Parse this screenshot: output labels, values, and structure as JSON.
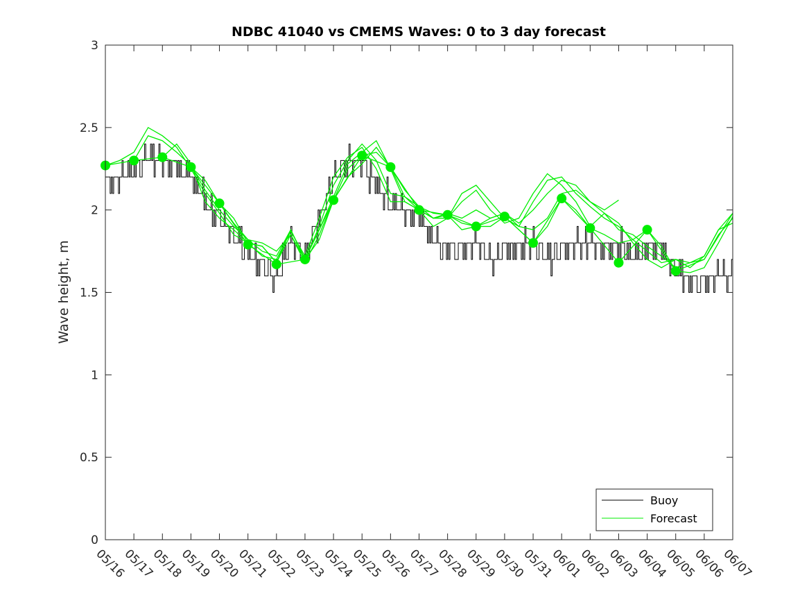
{
  "chart_data": {
    "type": "line",
    "title": "NDBC 41040 vs CMEMS Waves: 0 to 3 day forecast",
    "ylabel": "Wave height, m",
    "xlabel": "",
    "ylim": [
      0,
      3
    ],
    "yticks": [
      "0",
      "0.5",
      "1",
      "1.5",
      "2",
      "2.5",
      "3"
    ],
    "xlim": [
      "05/16",
      "06/07"
    ],
    "categories": [
      "05/16",
      "05/17",
      "05/18",
      "05/19",
      "05/20",
      "05/21",
      "05/22",
      "05/23",
      "05/24",
      "05/25",
      "05/26",
      "05/27",
      "05/28",
      "05/29",
      "05/30",
      "05/31",
      "06/01",
      "06/02",
      "06/03",
      "06/04",
      "06/05",
      "06/06",
      "06/07"
    ],
    "grid": false,
    "legend_position": "bottom-right",
    "colors": {
      "buoy": "#000000",
      "forecast": "#00ee00"
    },
    "series": [
      {
        "name": "Buoy",
        "x": [
          0,
          0.5,
          1,
          1.5,
          2,
          2.5,
          3,
          3.5,
          4,
          4.5,
          5,
          5.5,
          6,
          6.5,
          7,
          7.5,
          8,
          8.5,
          9,
          9.5,
          10,
          10.5,
          11,
          11.5,
          12,
          12.5,
          13,
          13.5,
          14,
          14.5,
          15,
          15.5,
          16,
          16.5,
          17,
          17.5,
          18,
          18.5,
          19,
          19.5,
          20,
          20.5,
          21,
          21.5,
          22
        ],
        "values": [
          2.15,
          2.2,
          2.25,
          2.3,
          2.3,
          2.25,
          2.2,
          2.05,
          1.95,
          1.85,
          1.75,
          1.65,
          1.6,
          1.82,
          1.72,
          1.95,
          2.2,
          2.3,
          2.28,
          2.15,
          2.05,
          2.0,
          1.98,
          1.8,
          1.75,
          1.75,
          1.8,
          1.7,
          1.75,
          1.78,
          1.8,
          1.72,
          1.75,
          1.8,
          1.8,
          1.75,
          1.78,
          1.72,
          1.75,
          1.75,
          1.65,
          1.55,
          1.55,
          1.6,
          1.6
        ]
      },
      {
        "name": "Forecast",
        "x": [
          0,
          1,
          2,
          3,
          4,
          5,
          6,
          7,
          8,
          9,
          10,
          11,
          12,
          13,
          14,
          15,
          16,
          17,
          18,
          19,
          20,
          21,
          22
        ],
        "values": [
          2.27,
          2.3,
          2.32,
          2.26,
          2.04,
          1.79,
          1.67,
          1.7,
          2.06,
          2.33,
          2.26,
          2.0,
          1.97,
          1.9,
          1.96,
          1.8,
          2.07,
          1.89,
          1.68,
          1.88,
          1.63,
          1.7,
          1.98
        ]
      },
      {
        "x": [
          0,
          0.5,
          1,
          1.5,
          2,
          2.5,
          3,
          3.5,
          4,
          4.5,
          5,
          5.5,
          6,
          6.5,
          7,
          7.5,
          8,
          8.5,
          9,
          9.5,
          10,
          10.5,
          11,
          11.5,
          12,
          12.5,
          13,
          13.5,
          14,
          14.5,
          15,
          15.5,
          16,
          16.5,
          17,
          17.5,
          18,
          18.5,
          19,
          19.5,
          20,
          20.5,
          21,
          21.5,
          22
        ],
        "values": [
          2.27,
          2.3,
          2.35,
          2.5,
          2.45,
          2.38,
          2.25,
          2.1,
          1.98,
          1.85,
          1.8,
          1.72,
          1.7,
          1.87,
          1.72,
          1.95,
          2.2,
          2.32,
          2.38,
          2.25,
          2.05,
          2.05,
          2.0,
          1.9,
          1.95,
          2.05,
          2.12,
          2.0,
          1.92,
          1.95,
          2.1,
          2.22,
          2.15,
          2.05,
          1.9,
          1.98,
          1.92,
          1.8,
          1.7,
          1.65,
          1.7,
          1.65,
          1.72,
          1.88,
          1.98
        ]
      },
      {
        "x": [
          1,
          1.5,
          2,
          2.5,
          3,
          3.5,
          4,
          4.5,
          5,
          5.5,
          6,
          6.5,
          7,
          7.5,
          8,
          8.5,
          9,
          9.5,
          10,
          10.5,
          11,
          11.5,
          12,
          12.5,
          13,
          13.5,
          14,
          14.5,
          15,
          15.5,
          16,
          16.5,
          17,
          17.5,
          18,
          18.5,
          19,
          19.5,
          20,
          20.5,
          21,
          21.5,
          22
        ],
        "values": [
          2.3,
          2.45,
          2.42,
          2.35,
          2.27,
          2.12,
          2.0,
          1.9,
          1.82,
          1.75,
          1.72,
          1.88,
          1.7,
          1.9,
          2.15,
          2.3,
          2.4,
          2.3,
          2.1,
          2.08,
          2.02,
          1.95,
          1.95,
          2.1,
          2.15,
          2.05,
          1.95,
          1.9,
          2.05,
          2.18,
          2.2,
          2.1,
          2.02,
          1.95,
          1.9,
          1.82,
          1.75,
          1.68,
          1.7,
          1.68,
          1.7,
          1.85,
          1.95
        ]
      },
      {
        "x": [
          2,
          2.5,
          3,
          3.5,
          4,
          4.5,
          5,
          5.5,
          6,
          6.5,
          7,
          7.5,
          8,
          8.5,
          9,
          9.5,
          10,
          10.5,
          11,
          11.5,
          12,
          12.5,
          13,
          13.5,
          14,
          14.5,
          15,
          15.5,
          16,
          16.5,
          17,
          17.5,
          18,
          18.5,
          19,
          19.5,
          20,
          20.5,
          21,
          21.5,
          22
        ],
        "values": [
          2.32,
          2.4,
          2.28,
          2.05,
          1.95,
          1.88,
          1.8,
          1.78,
          1.68,
          1.85,
          1.7,
          1.88,
          2.08,
          2.28,
          2.35,
          2.42,
          2.25,
          2.05,
          2.0,
          1.95,
          1.98,
          1.95,
          2.0,
          1.95,
          1.98,
          1.92,
          2.0,
          2.1,
          2.18,
          2.15,
          2.05,
          1.98,
          1.88,
          1.85,
          1.78,
          1.72,
          1.65,
          1.68,
          1.72,
          1.88,
          1.92
        ]
      },
      {
        "x": [
          3,
          3.5,
          4,
          4.5,
          5,
          5.5,
          6,
          6.5,
          7,
          7.5,
          8,
          8.5,
          9,
          9.5,
          10,
          10.5,
          11,
          11.5,
          12,
          12.5,
          13,
          13.5,
          14,
          14.5,
          15,
          15.5,
          16,
          16.5,
          17,
          17.5,
          18
        ],
        "values": [
          2.26,
          2.18,
          2.04,
          1.92,
          1.82,
          1.8,
          1.75,
          1.85,
          1.68,
          1.85,
          2.06,
          2.25,
          2.33,
          2.35,
          2.26,
          2.12,
          2.02,
          1.98,
          1.97,
          1.92,
          1.9,
          1.95,
          1.98,
          1.9,
          1.88,
          1.95,
          2.1,
          2.12,
          2.05,
          2.0,
          2.06
        ]
      },
      {
        "x": [
          4,
          4.5,
          5,
          5.5,
          6,
          6.5,
          7,
          7.5,
          8,
          8.5,
          9,
          9.5,
          10,
          10.5,
          11,
          11.5,
          12,
          12.5,
          13,
          13.5,
          14,
          14.5,
          15,
          15.5,
          16,
          16.5,
          17,
          17.5,
          18,
          18.5,
          19,
          19.5,
          20,
          20.5,
          21,
          21.5,
          22
        ],
        "values": [
          2.04,
          1.95,
          1.8,
          1.78,
          1.68,
          1.88,
          1.7,
          1.82,
          2.06,
          2.2,
          2.28,
          2.38,
          2.26,
          2.08,
          2.0,
          1.95,
          1.97,
          1.88,
          1.9,
          1.9,
          1.96,
          1.88,
          1.8,
          1.9,
          2.07,
          2.0,
          1.89,
          1.85,
          1.8,
          1.82,
          1.88,
          1.78,
          1.63,
          1.62,
          1.65,
          1.8,
          1.96
        ]
      }
    ],
    "forecast_markers": {
      "x": [
        0,
        1,
        2,
        3,
        4,
        5,
        6,
        7,
        8,
        9,
        10,
        11,
        12,
        13,
        14,
        15,
        16,
        17,
        18,
        19,
        20
      ],
      "values": [
        2.27,
        2.3,
        2.32,
        2.26,
        2.04,
        1.79,
        1.67,
        1.7,
        2.06,
        2.33,
        2.26,
        2.0,
        1.97,
        1.9,
        1.96,
        1.8,
        2.07,
        1.89,
        1.68,
        1.88,
        1.63
      ]
    },
    "legend": [
      "Buoy",
      "Forecast"
    ]
  }
}
